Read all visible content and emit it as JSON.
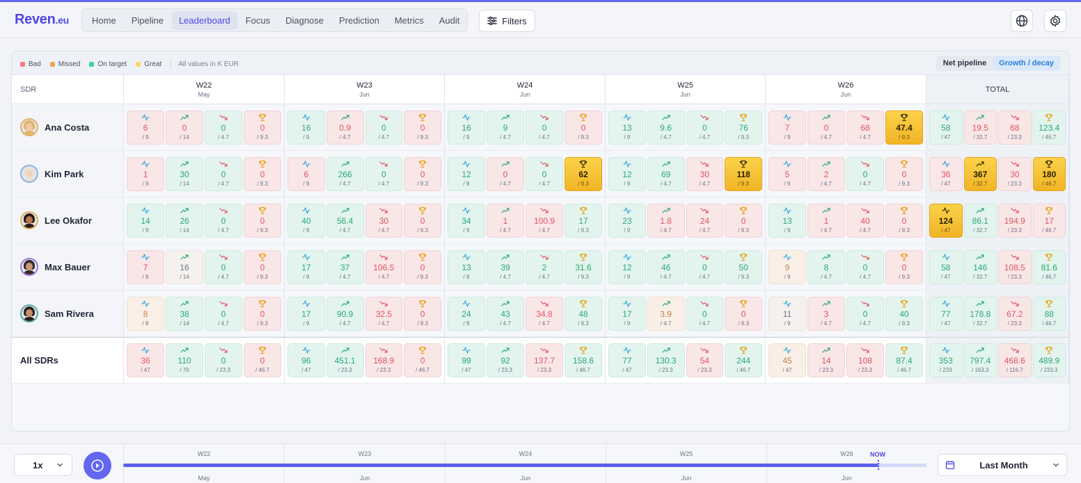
{
  "app": {
    "logo": "Reven",
    "logo_tld": ".eu"
  },
  "nav": [
    {
      "label": "Home",
      "active": false
    },
    {
      "label": "Pipeline",
      "active": false
    },
    {
      "label": "Leaderboard",
      "active": true
    },
    {
      "label": "Focus",
      "active": false
    },
    {
      "label": "Diagnose",
      "active": false
    },
    {
      "label": "Prediction",
      "active": false
    },
    {
      "label": "Metrics",
      "active": false
    },
    {
      "label": "Audit",
      "active": false
    }
  ],
  "toolbar": {
    "filters_label": "Filters",
    "globe_icon": "globe-icon",
    "settings_icon": "gear-icon"
  },
  "legend": {
    "items": [
      {
        "label": "Bad",
        "color": "#f07c84"
      },
      {
        "label": "Missed",
        "color": "#f0a35c"
      },
      {
        "label": "On target",
        "color": "#3ed39a"
      },
      {
        "label": "Great",
        "color": "#fcd56b"
      }
    ],
    "note": "All values in K EUR"
  },
  "view_toggle": {
    "options": [
      "Net pipeline",
      "Growth / decay"
    ],
    "selected": "Growth / decay"
  },
  "table": {
    "sdr_header": "SDR",
    "total_header": "TOTAL",
    "weeks": [
      {
        "week": "W22",
        "month": "May"
      },
      {
        "week": "W23",
        "month": "Jun"
      },
      {
        "week": "W24",
        "month": "Jun"
      },
      {
        "week": "W25",
        "month": "Jun"
      },
      {
        "week": "W26",
        "month": "Jun"
      }
    ],
    "metric_icons": [
      "activity-icon",
      "trending-up-icon",
      "trending-down-icon",
      "trophy-icon"
    ],
    "rows": [
      {
        "name": "Ana Costa",
        "avatar": {
          "skin": "#f3c9a4",
          "hair": "#e0b46a",
          "ring": "#e3b063"
        },
        "weeks": [
          [
            {
              "v": "6",
              "t": "/ 9",
              "s": "bad"
            },
            {
              "v": "0",
              "t": "/ 14",
              "s": "bad"
            },
            {
              "v": "0",
              "t": "/ 4.7",
              "s": "good"
            },
            {
              "v": "0",
              "t": "/ 9.3",
              "s": "bad"
            }
          ],
          [
            {
              "v": "16",
              "t": "/ 9",
              "s": "good"
            },
            {
              "v": "0.9",
              "t": "/ 4.7",
              "s": "bad"
            },
            {
              "v": "0",
              "t": "/ 4.7",
              "s": "good"
            },
            {
              "v": "0",
              "t": "/ 9.3",
              "s": "bad"
            }
          ],
          [
            {
              "v": "16",
              "t": "/ 9",
              "s": "good"
            },
            {
              "v": "9",
              "t": "/ 4.7",
              "s": "good"
            },
            {
              "v": "0",
              "t": "/ 4.7",
              "s": "good"
            },
            {
              "v": "0",
              "t": "/ 9.3",
              "s": "bad"
            }
          ],
          [
            {
              "v": "13",
              "t": "/ 9",
              "s": "good"
            },
            {
              "v": "9.6",
              "t": "/ 4.7",
              "s": "good"
            },
            {
              "v": "0",
              "t": "/ 4.7",
              "s": "good"
            },
            {
              "v": "76",
              "t": "/ 9.3",
              "s": "good"
            }
          ],
          [
            {
              "v": "7",
              "t": "/ 9",
              "s": "bad"
            },
            {
              "v": "0",
              "t": "/ 4.7",
              "s": "bad"
            },
            {
              "v": "68",
              "t": "/ 4.7",
              "s": "bad"
            },
            {
              "v": "47.4",
              "t": "/ 9.3",
              "s": "great"
            }
          ]
        ],
        "total": [
          {
            "v": "58",
            "t": "/ 47",
            "s": "good"
          },
          {
            "v": "19.5",
            "t": "/ 32.7",
            "s": "bad"
          },
          {
            "v": "68",
            "t": "/ 23.3",
            "s": "bad"
          },
          {
            "v": "123.4",
            "t": "/ 46.7",
            "s": "good"
          }
        ]
      },
      {
        "name": "Kim Park",
        "avatar": {
          "skin": "#f1d3bd",
          "hair": "#e9e2d3",
          "ring": "#8fb3e6"
        },
        "weeks": [
          [
            {
              "v": "1",
              "t": "/ 9",
              "s": "bad"
            },
            {
              "v": "30",
              "t": "/ 14",
              "s": "good"
            },
            {
              "v": "0",
              "t": "/ 4.7",
              "s": "good"
            },
            {
              "v": "0",
              "t": "/ 9.3",
              "s": "bad"
            }
          ],
          [
            {
              "v": "6",
              "t": "/ 9",
              "s": "bad"
            },
            {
              "v": "266",
              "t": "/ 4.7",
              "s": "good"
            },
            {
              "v": "0",
              "t": "/ 4.7",
              "s": "good"
            },
            {
              "v": "0",
              "t": "/ 9.3",
              "s": "bad"
            }
          ],
          [
            {
              "v": "12",
              "t": "/ 9",
              "s": "good"
            },
            {
              "v": "0",
              "t": "/ 4.7",
              "s": "bad"
            },
            {
              "v": "0",
              "t": "/ 4.7",
              "s": "good"
            },
            {
              "v": "62",
              "t": "/ 9.3",
              "s": "great"
            }
          ],
          [
            {
              "v": "12",
              "t": "/ 9",
              "s": "good"
            },
            {
              "v": "69",
              "t": "/ 4.7",
              "s": "good"
            },
            {
              "v": "30",
              "t": "/ 4.7",
              "s": "bad"
            },
            {
              "v": "118",
              "t": "/ 9.3",
              "s": "great"
            }
          ],
          [
            {
              "v": "5",
              "t": "/ 9",
              "s": "bad"
            },
            {
              "v": "2",
              "t": "/ 4.7",
              "s": "bad"
            },
            {
              "v": "0",
              "t": "/ 4.7",
              "s": "good"
            },
            {
              "v": "0",
              "t": "/ 9.3",
              "s": "bad"
            }
          ]
        ],
        "total": [
          {
            "v": "36",
            "t": "/ 47",
            "s": "bad"
          },
          {
            "v": "367",
            "t": "/ 32.7",
            "s": "great"
          },
          {
            "v": "30",
            "t": "/ 23.3",
            "s": "bad"
          },
          {
            "v": "180",
            "t": "/ 46.7",
            "s": "great"
          }
        ]
      },
      {
        "name": "Lee Okafor",
        "avatar": {
          "skin": "#b6764e",
          "hair": "#2a1a10",
          "ring": "#e3b063"
        },
        "weeks": [
          [
            {
              "v": "14",
              "t": "/ 9",
              "s": "good"
            },
            {
              "v": "26",
              "t": "/ 14",
              "s": "good"
            },
            {
              "v": "0",
              "t": "/ 4.7",
              "s": "good"
            },
            {
              "v": "0",
              "t": "/ 9.3",
              "s": "bad"
            }
          ],
          [
            {
              "v": "40",
              "t": "/ 9",
              "s": "good"
            },
            {
              "v": "56.4",
              "t": "/ 4.7",
              "s": "good"
            },
            {
              "v": "30",
              "t": "/ 4.7",
              "s": "bad"
            },
            {
              "v": "0",
              "t": "/ 9.3",
              "s": "bad"
            }
          ],
          [
            {
              "v": "34",
              "t": "/ 9",
              "s": "good"
            },
            {
              "v": "1",
              "t": "/ 4.7",
              "s": "bad"
            },
            {
              "v": "100.9",
              "t": "/ 4.7",
              "s": "bad"
            },
            {
              "v": "17",
              "t": "/ 9.3",
              "s": "good"
            }
          ],
          [
            {
              "v": "23",
              "t": "/ 9",
              "s": "good"
            },
            {
              "v": "1.8",
              "t": "/ 4.7",
              "s": "bad"
            },
            {
              "v": "24",
              "t": "/ 4.7",
              "s": "bad"
            },
            {
              "v": "0",
              "t": "/ 9.3",
              "s": "bad"
            }
          ],
          [
            {
              "v": "13",
              "t": "/ 9",
              "s": "good"
            },
            {
              "v": "1",
              "t": "/ 4.7",
              "s": "bad"
            },
            {
              "v": "40",
              "t": "/ 4.7",
              "s": "bad"
            },
            {
              "v": "0",
              "t": "/ 9.3",
              "s": "bad"
            }
          ]
        ],
        "total": [
          {
            "v": "124",
            "t": "/ 47",
            "s": "great"
          },
          {
            "v": "86.1",
            "t": "/ 32.7",
            "s": "good"
          },
          {
            "v": "194.9",
            "t": "/ 23.3",
            "s": "bad"
          },
          {
            "v": "17",
            "t": "/ 46.7",
            "s": "bad"
          }
        ]
      },
      {
        "name": "Max Bauer",
        "avatar": {
          "skin": "#c99478",
          "hair": "#3a2a22",
          "ring": "#9b7ae0"
        },
        "weeks": [
          [
            {
              "v": "7",
              "t": "/ 9",
              "s": "bad"
            },
            {
              "v": "16",
              "t": "/ 14",
              "s": "neutral"
            },
            {
              "v": "0",
              "t": "/ 4.7",
              "s": "good"
            },
            {
              "v": "0",
              "t": "/ 9.3",
              "s": "bad"
            }
          ],
          [
            {
              "v": "17",
              "t": "/ 9",
              "s": "good"
            },
            {
              "v": "37",
              "t": "/ 4.7",
              "s": "good"
            },
            {
              "v": "106.5",
              "t": "/ 4.7",
              "s": "bad"
            },
            {
              "v": "0",
              "t": "/ 9.3",
              "s": "bad"
            }
          ],
          [
            {
              "v": "13",
              "t": "/ 9",
              "s": "good"
            },
            {
              "v": "39",
              "t": "/ 4.7",
              "s": "good"
            },
            {
              "v": "2",
              "t": "/ 4.7",
              "s": "good"
            },
            {
              "v": "31.6",
              "t": "/ 9.3",
              "s": "good"
            }
          ],
          [
            {
              "v": "12",
              "t": "/ 9",
              "s": "good"
            },
            {
              "v": "46",
              "t": "/ 4.7",
              "s": "good"
            },
            {
              "v": "0",
              "t": "/ 4.7",
              "s": "good"
            },
            {
              "v": "50",
              "t": "/ 9.3",
              "s": "good"
            }
          ],
          [
            {
              "v": "9",
              "t": "/ 9",
              "s": "missed"
            },
            {
              "v": "8",
              "t": "/ 4.7",
              "s": "good"
            },
            {
              "v": "0",
              "t": "/ 4.7",
              "s": "good"
            },
            {
              "v": "0",
              "t": "/ 9.3",
              "s": "bad"
            }
          ]
        ],
        "total": [
          {
            "v": "58",
            "t": "/ 47",
            "s": "good"
          },
          {
            "v": "146",
            "t": "/ 32.7",
            "s": "good"
          },
          {
            "v": "108.5",
            "t": "/ 23.3",
            "s": "bad"
          },
          {
            "v": "81.6",
            "t": "/ 46.7",
            "s": "good"
          }
        ]
      },
      {
        "name": "Sam Rivera",
        "avatar": {
          "skin": "#c98e6a",
          "hair": "#2a211b",
          "ring": "#5aa9a0"
        },
        "weeks": [
          [
            {
              "v": "8",
              "t": "/ 9",
              "s": "missed"
            },
            {
              "v": "38",
              "t": "/ 14",
              "s": "good"
            },
            {
              "v": "0",
              "t": "/ 4.7",
              "s": "good"
            },
            {
              "v": "0",
              "t": "/ 9.3",
              "s": "bad"
            }
          ],
          [
            {
              "v": "17",
              "t": "/ 9",
              "s": "good"
            },
            {
              "v": "90.9",
              "t": "/ 4.7",
              "s": "good"
            },
            {
              "v": "32.5",
              "t": "/ 4.7",
              "s": "bad"
            },
            {
              "v": "0",
              "t": "/ 9.3",
              "s": "bad"
            }
          ],
          [
            {
              "v": "24",
              "t": "/ 9",
              "s": "good"
            },
            {
              "v": "43",
              "t": "/ 4.7",
              "s": "good"
            },
            {
              "v": "34.8",
              "t": "/ 4.7",
              "s": "bad"
            },
            {
              "v": "48",
              "t": "/ 9.3",
              "s": "good"
            }
          ],
          [
            {
              "v": "17",
              "t": "/ 9",
              "s": "good"
            },
            {
              "v": "3.9",
              "t": "/ 4.7",
              "s": "missed"
            },
            {
              "v": "0",
              "t": "/ 4.7",
              "s": "good"
            },
            {
              "v": "0",
              "t": "/ 9.3",
              "s": "bad"
            }
          ],
          [
            {
              "v": "11",
              "t": "/ 9",
              "s": "neutral"
            },
            {
              "v": "3",
              "t": "/ 4.7",
              "s": "bad"
            },
            {
              "v": "0",
              "t": "/ 4.7",
              "s": "good"
            },
            {
              "v": "40",
              "t": "/ 9.3",
              "s": "good"
            }
          ]
        ],
        "total": [
          {
            "v": "77",
            "t": "/ 47",
            "s": "good"
          },
          {
            "v": "178.8",
            "t": "/ 32.7",
            "s": "good"
          },
          {
            "v": "67.2",
            "t": "/ 23.3",
            "s": "bad"
          },
          {
            "v": "88",
            "t": "/ 46.7",
            "s": "good"
          }
        ]
      }
    ],
    "all_row": {
      "name": "All SDRs",
      "weeks": [
        [
          {
            "v": "36",
            "t": "/ 47",
            "s": "bad"
          },
          {
            "v": "110",
            "t": "/ 70",
            "s": "good"
          },
          {
            "v": "0",
            "t": "/ 23.3",
            "s": "good"
          },
          {
            "v": "0",
            "t": "/ 46.7",
            "s": "bad"
          }
        ],
        [
          {
            "v": "96",
            "t": "/ 47",
            "s": "good"
          },
          {
            "v": "451.1",
            "t": "/ 23.3",
            "s": "good"
          },
          {
            "v": "168.9",
            "t": "/ 23.3",
            "s": "bad"
          },
          {
            "v": "0",
            "t": "/ 46.7",
            "s": "bad"
          }
        ],
        [
          {
            "v": "99",
            "t": "/ 47",
            "s": "good"
          },
          {
            "v": "92",
            "t": "/ 23.3",
            "s": "good"
          },
          {
            "v": "137.7",
            "t": "/ 23.3",
            "s": "bad"
          },
          {
            "v": "158.6",
            "t": "/ 46.7",
            "s": "good"
          }
        ],
        [
          {
            "v": "77",
            "t": "/ 47",
            "s": "good"
          },
          {
            "v": "130.3",
            "t": "/ 23.3",
            "s": "good"
          },
          {
            "v": "54",
            "t": "/ 23.3",
            "s": "bad"
          },
          {
            "v": "244",
            "t": "/ 46.7",
            "s": "good"
          }
        ],
        [
          {
            "v": "45",
            "t": "/ 47",
            "s": "missed"
          },
          {
            "v": "14",
            "t": "/ 23.3",
            "s": "bad"
          },
          {
            "v": "108",
            "t": "/ 23.3",
            "s": "bad"
          },
          {
            "v": "87.4",
            "t": "/ 46.7",
            "s": "good"
          }
        ]
      ],
      "total": [
        {
          "v": "353",
          "t": "/ 233",
          "s": "good"
        },
        {
          "v": "797.4",
          "t": "/ 163.3",
          "s": "good"
        },
        {
          "v": "468.6",
          "t": "/ 116.7",
          "s": "bad"
        },
        {
          "v": "489.9",
          "t": "/ 233.3",
          "s": "good"
        }
      ]
    }
  },
  "playback": {
    "speed": "1x",
    "now_label": "NOW",
    "progress": 0.94,
    "timeline": [
      {
        "week": "W22",
        "month": "May"
      },
      {
        "week": "W23",
        "month": "Jun"
      },
      {
        "week": "W24",
        "month": "Jun"
      },
      {
        "week": "W25",
        "month": "Jun"
      },
      {
        "week": "W26",
        "month": "Jun"
      }
    ],
    "range_label": "Last Month"
  }
}
